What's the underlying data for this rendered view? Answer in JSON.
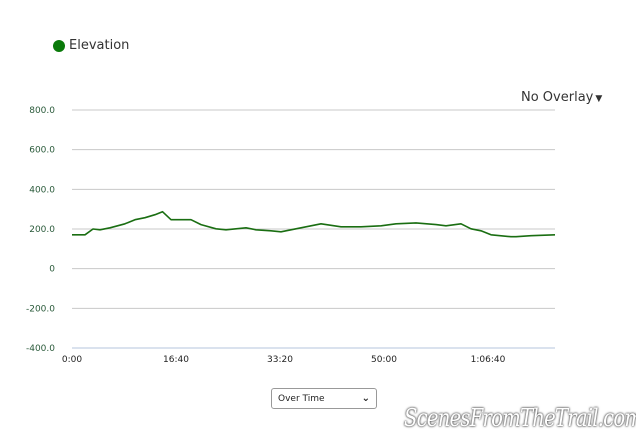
{
  "legend": {
    "label": "Elevation",
    "color": "#0a7a0a"
  },
  "overlay": {
    "label": "No Overlay",
    "icon": "caret-down-icon"
  },
  "mode_select": {
    "value": "Over Time",
    "icon": "chevron-down-icon"
  },
  "watermark": "ScenesFromTheTrail.com",
  "chart_data": {
    "type": "line",
    "series": [
      {
        "name": "Elevation",
        "color": "#1a6e12",
        "x": [
          0,
          125,
          202,
          269,
          365,
          510,
          606,
          702,
          798,
          870,
          952,
          1048,
          1144,
          1240,
          1385,
          1481,
          1577,
          1673,
          1769,
          1913,
          2010,
          2154,
          2298,
          2394,
          2587,
          2779,
          2971,
          3115,
          3308,
          3500,
          3596,
          3740,
          3837,
          3933,
          4029,
          4221,
          4269,
          4413,
          4644
        ],
        "y": [
          171,
          171,
          200,
          196,
          206,
          226,
          247,
          257,
          272,
          287,
          247,
          247,
          247,
          222,
          201,
          196,
          201,
          206,
          196,
          191,
          186,
          201,
          216,
          226,
          211,
          211,
          216,
          226,
          231,
          222,
          216,
          226,
          201,
          191,
          171,
          161,
          161,
          166,
          171
        ]
      }
    ],
    "xlabel": "",
    "ylabel": "",
    "x_ticks": [
      "0:00",
      "16:40",
      "33:20",
      "50:00",
      "1:06:40"
    ],
    "x_tick_values": [
      0,
      1000,
      2000,
      3000,
      4000
    ],
    "xlim": [
      0,
      4644
    ],
    "y_ticks": [
      "800.0",
      "600.0",
      "400.0",
      "200.0",
      "0",
      "-200.0",
      "-400.0"
    ],
    "y_tick_values": [
      800,
      600,
      400,
      200,
      0,
      -200,
      -400
    ],
    "ylim": [
      -400,
      800
    ],
    "grid": true,
    "legend": "top-left"
  }
}
